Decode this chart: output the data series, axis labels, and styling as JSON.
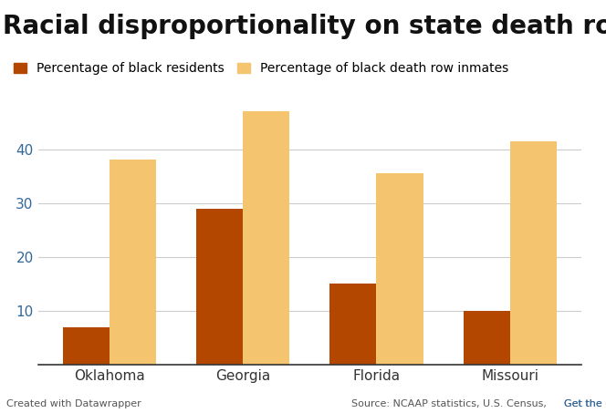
{
  "title": "Racial disproportionality on state death rows",
  "categories": [
    "Oklahoma",
    "Georgia",
    "Florida",
    "Missouri"
  ],
  "series": [
    {
      "label": "Percentage of black residents",
      "color": "#b34700",
      "values": [
        7,
        29,
        15,
        10
      ]
    },
    {
      "label": "Percentage of black death row inmates",
      "color": "#f5c46e",
      "values": [
        38,
        47,
        35.5,
        41.5
      ]
    }
  ],
  "ylim": [
    0,
    52
  ],
  "yticks": [
    10,
    20,
    30,
    40
  ],
  "bar_width": 0.35,
  "background_color": "#ffffff",
  "grid_color": "#cccccc",
  "axis_label_color": "#336699",
  "title_fontsize": 20,
  "legend_fontsize": 10,
  "tick_fontsize": 11,
  "footer_left": "Created with Datawrapper",
  "footer_right": "Source: NCAAP statistics, U.S. Census,",
  "footer_link": "Get the data",
  "footer_link_color": "#336699"
}
